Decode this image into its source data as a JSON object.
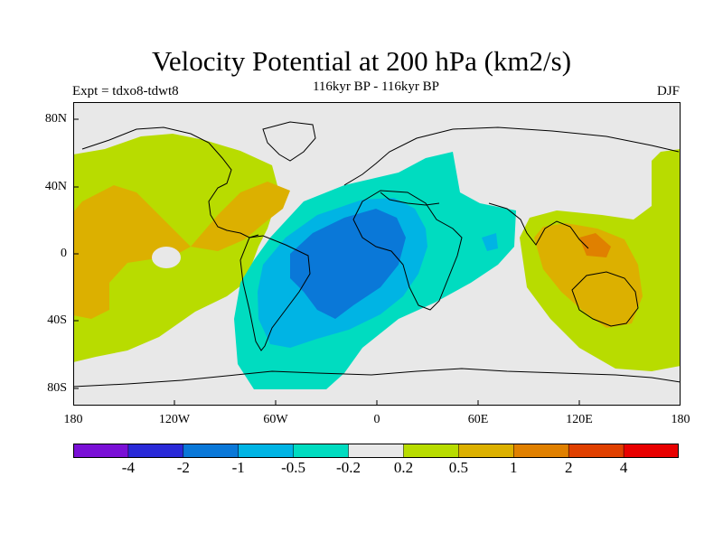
{
  "title": "Velocity Potential at 200 hPa (km2/s)",
  "subtitle": "116kyr BP - 116kyr BP",
  "left_label": "Expt = tdxo8-tdwt8",
  "right_label": "DJF",
  "lat_ticks": [
    "80N",
    "40N",
    "0",
    "40S",
    "80S"
  ],
  "lon_ticks": [
    "180",
    "120W",
    "60W",
    "0",
    "60E",
    "120E",
    "180"
  ],
  "colorbar": {
    "labels": [
      "-4",
      "-2",
      "-1",
      "-0.5",
      "-0.2",
      "0.2",
      "0.5",
      "1",
      "2",
      "4"
    ],
    "colors": [
      "#7a10d6",
      "#2a2ad8",
      "#0a78d8",
      "#00b4e4",
      "#00dcc0",
      "#e8e8e8",
      "#b8dc00",
      "#dcb000",
      "#e08000",
      "#e04000",
      "#e80000"
    ]
  },
  "colors": {
    "land_outline": "#000000",
    "neutral": "#e8e8e8"
  }
}
